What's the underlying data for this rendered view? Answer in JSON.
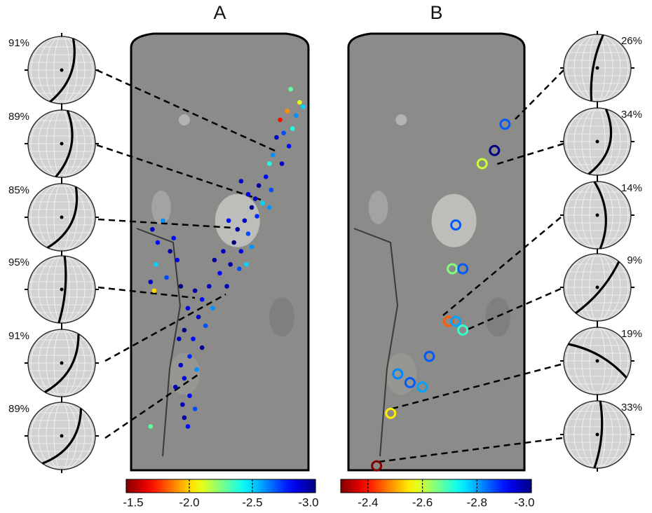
{
  "chart_data": [
    {
      "type": "scatter",
      "title": "A",
      "marker": "dot",
      "colormap": "jet",
      "xlim": [
        0,
        100
      ],
      "ylim": [
        0,
        100
      ],
      "clim": [
        -1.5,
        -3.0
      ],
      "cticks": [
        -1.5,
        {
          "value": -2,
          "label": "-2.0"
        },
        -2.5,
        {
          "value": -3,
          "label": "-3.0"
        }
      ],
      "x": [
        90,
        95,
        93,
        88,
        84,
        91,
        97,
        86,
        82,
        89,
        80,
        85,
        78,
        76,
        72,
        79,
        70,
        74,
        68,
        66,
        78,
        62,
        71,
        64,
        60,
        66,
        58,
        55,
        62,
        52,
        68,
        56,
        61,
        50,
        65,
        54,
        47,
        12,
        18,
        15,
        22,
        14,
        26,
        20,
        11,
        28,
        24,
        13,
        44,
        40,
        36,
        46,
        32,
        38,
        42,
        30,
        35,
        27,
        40,
        33,
        28,
        37,
        30,
        25,
        33,
        29,
        36,
        30,
        32,
        11
      ],
      "y": [
        87,
        84,
        81,
        82,
        80,
        78,
        83,
        77,
        76,
        74,
        72,
        70,
        70,
        67,
        65,
        64,
        62,
        61,
        60,
        63,
        60,
        66,
        58,
        57,
        55,
        54,
        52,
        57,
        50,
        50,
        51,
        47,
        46,
        45,
        47,
        42,
        48,
        55,
        57,
        52,
        50,
        47,
        48,
        44,
        43,
        42,
        53,
        41,
        42,
        39,
        41,
        37,
        37,
        35,
        33,
        32,
        30,
        30,
        28,
        26,
        24,
        23,
        21,
        19,
        17,
        15,
        14,
        12,
        10,
        10
      ],
      "values": [
        -2.3,
        -2.1,
        -2.6,
        -1.9,
        -1.7,
        -2.4,
        -2.5,
        -2.7,
        -2.9,
        -2.8,
        -2.6,
        -2.9,
        -2.4,
        -2.8,
        -2.95,
        -2.7,
        -2.9,
        -2.5,
        -3.0,
        -2.85,
        -2.6,
        -2.9,
        -2.75,
        -2.9,
        -2.95,
        -2.7,
        -3.0,
        -2.8,
        -2.85,
        -2.9,
        -2.6,
        -2.95,
        -2.7,
        -2.8,
        -2.5,
        -2.9,
        -2.95,
        -2.9,
        -2.6,
        -2.8,
        -2.95,
        -2.5,
        -2.85,
        -2.7,
        -2.9,
        -3.0,
        -2.8,
        -2.0,
        -2.9,
        -2.8,
        -2.95,
        -2.6,
        -2.85,
        -2.9,
        -2.7,
        -3.0,
        -2.8,
        -2.9,
        -2.95,
        -2.75,
        -2.9,
        -2.6,
        -2.85,
        -2.9,
        -2.8,
        -2.9,
        -2.7,
        -2.95,
        -2.8,
        -2.3
      ],
      "stereonet_fits": [
        91,
        89,
        85,
        95,
        91,
        89
      ],
      "stereonet_fit_labels": [
        "91%",
        "89%",
        "85%",
        "95%",
        "91%",
        "89%"
      ]
    },
    {
      "type": "scatter",
      "title": "B",
      "marker": "ring",
      "colormap": "jet",
      "xlim": [
        0,
        100
      ],
      "ylim": [
        0,
        100
      ],
      "clim": [
        -2.3,
        -3.0
      ],
      "cticks": [
        -2.4,
        -2.6,
        -2.8,
        {
          "value": -3,
          "label": "-3.0"
        }
      ],
      "x": [
        89,
        83,
        76,
        61,
        59,
        65,
        57,
        61,
        65,
        46,
        28,
        35,
        42,
        24,
        16
      ],
      "y": [
        79,
        73,
        70,
        56,
        46,
        46,
        34,
        34,
        32,
        26,
        22,
        20,
        19,
        13,
        1
      ],
      "values": [
        -2.85,
        -3.0,
        -2.6,
        -2.85,
        -2.65,
        -2.85,
        -2.45,
        -2.8,
        -2.7,
        -2.85,
        -2.82,
        -2.85,
        -2.8,
        -2.55,
        -2.3
      ],
      "stereonet_fits": [
        26,
        34,
        14,
        9,
        19,
        33
      ],
      "stereonet_fit_labels": [
        "26%",
        "34%",
        "14%",
        "9%",
        "19%",
        "33%"
      ]
    }
  ]
}
